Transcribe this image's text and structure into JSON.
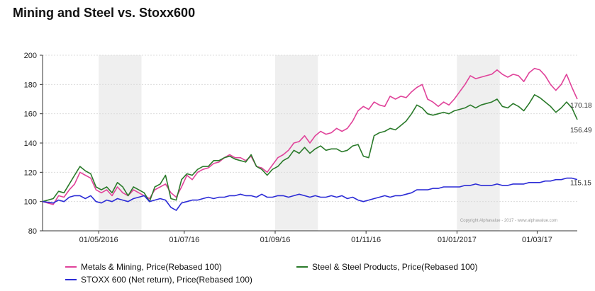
{
  "title": "Mining and Steel vs. Stoxx600",
  "chart_data": {
    "type": "line",
    "title": "Mining and Steel vs. Stoxx600",
    "xlabel": "",
    "ylabel": "",
    "ylim": [
      80,
      200
    ],
    "yticks": [
      80,
      100,
      120,
      140,
      160,
      180,
      200
    ],
    "xlim": [
      0,
      100
    ],
    "xticks": [
      {
        "label": "01/05/2016",
        "x": 10.5
      },
      {
        "label": "01/07/16",
        "x": 26.5
      },
      {
        "label": "01/09/16",
        "x": 43.5
      },
      {
        "label": "01/11/16",
        "x": 60.5
      },
      {
        "label": "01/01/2017",
        "x": 77.5
      },
      {
        "label": "01/03/17",
        "x": 92.5
      }
    ],
    "shaded_bands": [
      [
        10.5,
        18.5
      ],
      [
        43.5,
        51.5
      ],
      [
        77.5,
        85.5
      ]
    ],
    "grid": true,
    "legend_position": "bottom",
    "series": [
      {
        "name": "Metals & Mining, Price(Rebased 100)",
        "color": "#e0439a",
        "end_label": "170.18",
        "x": [
          0,
          2,
          3,
          4,
          5,
          6,
          7,
          8,
          9,
          10,
          11,
          12,
          13,
          14,
          15,
          16,
          17,
          18,
          19,
          20,
          21,
          22,
          23,
          24,
          25,
          26,
          27,
          28,
          29,
          30,
          31,
          32,
          33,
          34,
          35,
          36,
          37,
          38,
          39,
          40,
          41,
          42,
          43,
          44,
          45,
          46,
          47,
          48,
          49,
          50,
          51,
          52,
          53,
          54,
          55,
          56,
          57,
          58,
          59,
          60,
          61,
          62,
          63,
          64,
          65,
          66,
          67,
          68,
          69,
          70,
          71,
          72,
          73,
          74,
          75,
          76,
          77,
          78,
          79,
          80,
          81,
          82,
          83,
          84,
          85,
          86,
          87,
          88,
          89,
          90,
          91,
          92,
          93,
          94,
          95,
          96,
          97,
          98,
          99,
          100
        ],
        "y": [
          100,
          98,
          104,
          103,
          108,
          112,
          120,
          118,
          116,
          108,
          106,
          108,
          104,
          110,
          106,
          104,
          108,
          106,
          104,
          102,
          108,
          110,
          112,
          106,
          103,
          110,
          118,
          115,
          120,
          122,
          123,
          126,
          127,
          130,
          132,
          130,
          130,
          128,
          131,
          124,
          123,
          120,
          125,
          130,
          132,
          135,
          140,
          141,
          145,
          140,
          145,
          148,
          146,
          147,
          150,
          148,
          150,
          155,
          162,
          165,
          163,
          168,
          166,
          165,
          172,
          170,
          172,
          171,
          175,
          178,
          180,
          170,
          168,
          165,
          168,
          166,
          170,
          175,
          180,
          186,
          184,
          185,
          186,
          187,
          190,
          187,
          185,
          187,
          186,
          182,
          188,
          191,
          190,
          186,
          180,
          176,
          180,
          187,
          178,
          170
        ]
      },
      {
        "name": "Steel & Steel Products, Price(Rebased 100)",
        "color": "#2a7a2a",
        "end_label": "156.49",
        "x": [
          0,
          2,
          3,
          4,
          5,
          6,
          7,
          8,
          9,
          10,
          11,
          12,
          13,
          14,
          15,
          16,
          17,
          18,
          19,
          20,
          21,
          22,
          23,
          24,
          25,
          26,
          27,
          28,
          29,
          30,
          31,
          32,
          33,
          34,
          35,
          36,
          37,
          38,
          39,
          40,
          41,
          42,
          43,
          44,
          45,
          46,
          47,
          48,
          49,
          50,
          51,
          52,
          53,
          54,
          55,
          56,
          57,
          58,
          59,
          60,
          61,
          62,
          63,
          64,
          65,
          66,
          67,
          68,
          69,
          70,
          71,
          72,
          73,
          74,
          75,
          76,
          77,
          78,
          79,
          80,
          81,
          82,
          83,
          84,
          85,
          86,
          87,
          88,
          89,
          90,
          91,
          92,
          93,
          94,
          95,
          96,
          97,
          98,
          99,
          100
        ],
        "y": [
          100,
          102,
          107,
          106,
          112,
          118,
          124,
          121,
          119,
          110,
          108,
          110,
          106,
          113,
          110,
          104,
          110,
          108,
          106,
          100,
          110,
          112,
          118,
          102,
          101,
          115,
          119,
          118,
          122,
          124,
          124,
          128,
          128,
          130,
          131,
          129,
          128,
          127,
          132,
          124,
          122,
          118,
          122,
          124,
          128,
          130,
          135,
          133,
          137,
          133,
          136,
          138,
          135,
          136,
          136,
          134,
          135,
          138,
          139,
          131,
          130,
          145,
          147,
          148,
          150,
          149,
          152,
          155,
          160,
          166,
          164,
          160,
          159,
          160,
          161,
          160,
          162,
          163,
          164,
          166,
          164,
          166,
          167,
          168,
          170,
          165,
          164,
          167,
          165,
          162,
          167,
          173,
          171,
          168,
          165,
          161,
          164,
          168,
          164,
          156
        ]
      },
      {
        "name": "STOXX 600 (Net return), Price(Rebased 100)",
        "color": "#2b2bd6",
        "end_label": "115.15",
        "x": [
          0,
          2,
          3,
          4,
          5,
          6,
          7,
          8,
          9,
          10,
          11,
          12,
          13,
          14,
          15,
          16,
          17,
          18,
          19,
          20,
          21,
          22,
          23,
          24,
          25,
          26,
          27,
          28,
          29,
          30,
          31,
          32,
          33,
          34,
          35,
          36,
          37,
          38,
          39,
          40,
          41,
          42,
          43,
          44,
          45,
          46,
          47,
          48,
          49,
          50,
          51,
          52,
          53,
          54,
          55,
          56,
          57,
          58,
          59,
          60,
          61,
          62,
          63,
          64,
          65,
          66,
          67,
          68,
          69,
          70,
          71,
          72,
          73,
          74,
          75,
          76,
          77,
          78,
          79,
          80,
          81,
          82,
          83,
          84,
          85,
          86,
          87,
          88,
          89,
          90,
          91,
          92,
          93,
          94,
          95,
          96,
          97,
          98,
          99,
          100
        ],
        "y": [
          100,
          99,
          101,
          100,
          103,
          104,
          104,
          102,
          104,
          100,
          99,
          101,
          100,
          102,
          101,
          100,
          102,
          103,
          104,
          100,
          101,
          102,
          101,
          96,
          94,
          99,
          100,
          101,
          101,
          102,
          103,
          102,
          103,
          103,
          104,
          104,
          105,
          104,
          104,
          103,
          105,
          103,
          103,
          104,
          104,
          103,
          104,
          105,
          104,
          103,
          104,
          103,
          103,
          104,
          103,
          104,
          102,
          103,
          101,
          100,
          101,
          102,
          103,
          104,
          103,
          104,
          104,
          105,
          106,
          108,
          108,
          108,
          109,
          109,
          110,
          110,
          110,
          110,
          111,
          111,
          112,
          111,
          111,
          111,
          112,
          111,
          111,
          112,
          112,
          112,
          113,
          113,
          113,
          114,
          114,
          115,
          115,
          116,
          116,
          115
        ]
      }
    ]
  },
  "copyright": "Copyright Alphavalue - 2017 - www.alphavalue.com"
}
